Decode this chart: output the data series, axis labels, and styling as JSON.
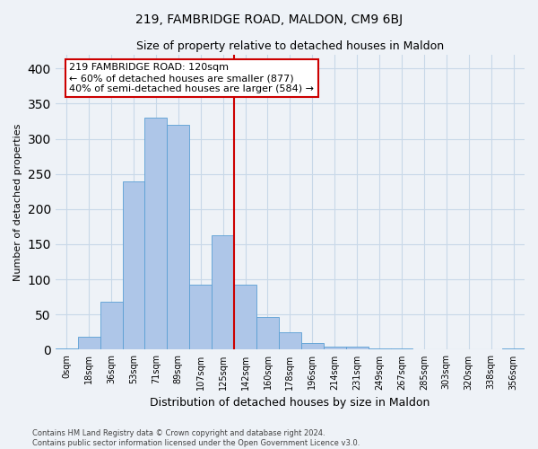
{
  "title": "219, FAMBRIDGE ROAD, MALDON, CM9 6BJ",
  "subtitle": "Size of property relative to detached houses in Maldon",
  "xlabel": "Distribution of detached houses by size in Maldon",
  "ylabel": "Number of detached properties",
  "footer_line1": "Contains HM Land Registry data © Crown copyright and database right 2024.",
  "footer_line2": "Contains public sector information licensed under the Open Government Licence v3.0.",
  "bar_labels": [
    "0sqm",
    "18sqm",
    "36sqm",
    "53sqm",
    "71sqm",
    "89sqm",
    "107sqm",
    "125sqm",
    "142sqm",
    "160sqm",
    "178sqm",
    "196sqm",
    "214sqm",
    "231sqm",
    "249sqm",
    "267sqm",
    "285sqm",
    "303sqm",
    "320sqm",
    "338sqm",
    "356sqm"
  ],
  "bar_values": [
    2,
    18,
    68,
    240,
    330,
    320,
    92,
    163,
    92,
    47,
    25,
    10,
    5,
    5,
    2,
    2,
    1,
    1,
    1,
    0,
    2
  ],
  "bar_color": "#aec6e8",
  "bar_edge_color": "#5a9fd4",
  "vline_color": "#cc0000",
  "vline_index": 7.5,
  "annotation_text": "219 FAMBRIDGE ROAD: 120sqm\n← 60% of detached houses are smaller (877)\n40% of semi-detached houses are larger (584) →",
  "annotation_box_facecolor": "#ffffff",
  "annotation_box_edgecolor": "#cc0000",
  "ylim": [
    0,
    420
  ],
  "yticks": [
    0,
    50,
    100,
    150,
    200,
    250,
    300,
    350,
    400
  ],
  "grid_color": "#c8d8e8",
  "background_color": "#eef2f7",
  "title_fontsize": 10,
  "subtitle_fontsize": 9,
  "ylabel_fontsize": 8,
  "xlabel_fontsize": 9,
  "tick_fontsize": 7,
  "annotation_fontsize": 8,
  "footer_fontsize": 6
}
